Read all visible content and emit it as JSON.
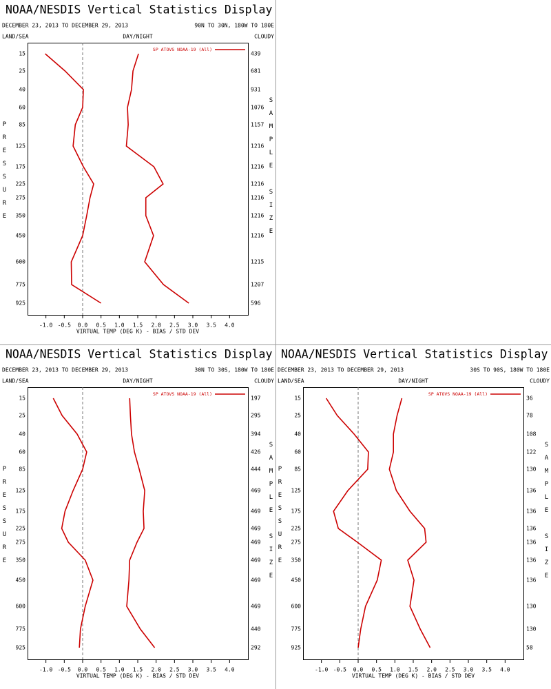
{
  "chart_data": [
    {
      "type": "line",
      "title": "NOAA/NESDIS Vertical Statistics Display",
      "subtitle": "DECEMBER 23, 2013 TO DECEMBER 29, 2013",
      "region": "90N TO 30N, 180W TO 180E",
      "left_label": "LAND/SEA",
      "center_label": "DAY/NIGHT",
      "right_label": "CLOUDY",
      "y_label": "PRESSURE",
      "y2_label": "SAMPLE SIZE",
      "x_label": "VIRTUAL TEMP (DEG K) - BIAS / STD DEV",
      "categories": [
        "15",
        "25",
        "40",
        "60",
        "85",
        "125",
        "175",
        "225",
        "275",
        "350",
        "450",
        "600",
        "775",
        "925"
      ],
      "sample_sizes": [
        439,
        681,
        931,
        1076,
        1157,
        1216,
        1216,
        1216,
        1216,
        1216,
        1216,
        1215,
        1207,
        596
      ],
      "series": [
        {
          "name": "SP ATOVS NOAA-19 (All)",
          "color": "#cc0000",
          "values": [
            -1.02,
            -0.48,
            0.02,
            0.0,
            -0.2,
            -0.26,
            0.02,
            0.3,
            0.2,
            0.11,
            0.0,
            -0.31,
            -0.3,
            0.5
          ]
        },
        {
          "color": "#cc0000",
          "values": [
            1.52,
            1.37,
            1.33,
            1.22,
            1.24,
            1.19,
            1.94,
            2.19,
            1.72,
            1.72,
            1.93,
            1.69,
            2.2,
            2.89
          ]
        }
      ],
      "xlim": [
        -1.5,
        4.5
      ],
      "xticks": [
        {
          "value": -1,
          "label": "-1.0"
        },
        {
          "value": -0.5,
          "label": "-0.5"
        },
        {
          "value": 0,
          "label": "0.0"
        },
        {
          "value": 0.5,
          "label": "0.5"
        },
        {
          "value": 1,
          "label": "1.0"
        },
        {
          "value": 1.5,
          "label": "1.5"
        },
        {
          "value": 2,
          "label": "2.0"
        },
        {
          "value": 2.5,
          "label": "2.5"
        },
        {
          "value": 3,
          "label": "3.0"
        },
        {
          "value": 3.5,
          "label": "3.5"
        },
        {
          "value": 4,
          "label": "4.0"
        }
      ]
    },
    {
      "type": "line",
      "title": "NOAA/NESDIS Vertical Statistics Display",
      "subtitle": "DECEMBER 23, 2013 TO DECEMBER 29, 2013",
      "region": "30N TO 30S, 180W TO 180E",
      "left_label": "LAND/SEA",
      "center_label": "DAY/NIGHT",
      "right_label": "CLOUDY",
      "y_label": "PRESSURE",
      "y2_label": "SAMPLE SIZE",
      "x_label": "VIRTUAL TEMP (DEG K) - BIAS / STD DEV",
      "categories": [
        "15",
        "25",
        "40",
        "60",
        "85",
        "125",
        "175",
        "225",
        "275",
        "350",
        "450",
        "600",
        "775",
        "925"
      ],
      "sample_sizes": [
        197,
        295,
        394,
        426,
        444,
        469,
        469,
        469,
        469,
        469,
        469,
        469,
        440,
        292
      ],
      "series": [
        {
          "name": "SP ATOVS NOAA-19 (All)",
          "color": "#cc0000",
          "values": [
            -0.8,
            -0.56,
            -0.15,
            0.11,
            0.0,
            -0.26,
            -0.48,
            -0.57,
            -0.39,
            0.07,
            0.28,
            0.07,
            -0.06,
            -0.09
          ]
        },
        {
          "color": "#cc0000",
          "values": [
            1.28,
            1.3,
            1.33,
            1.41,
            1.54,
            1.69,
            1.65,
            1.67,
            1.48,
            1.28,
            1.26,
            1.2,
            1.57,
            1.96
          ]
        }
      ],
      "xlim": [
        -1.5,
        4.5
      ],
      "xticks": [
        {
          "value": -1,
          "label": "-1.0"
        },
        {
          "value": -0.5,
          "label": "-0.5"
        },
        {
          "value": 0,
          "label": "0.0"
        },
        {
          "value": 0.5,
          "label": "0.5"
        },
        {
          "value": 1,
          "label": "1.0"
        },
        {
          "value": 1.5,
          "label": "1.5"
        },
        {
          "value": 2,
          "label": "2.0"
        },
        {
          "value": 2.5,
          "label": "2.5"
        },
        {
          "value": 3,
          "label": "3.0"
        },
        {
          "value": 3.5,
          "label": "3.5"
        },
        {
          "value": 4,
          "label": "4.0"
        }
      ]
    },
    {
      "type": "line",
      "title": "NOAA/NESDIS Vertical Statistics Display",
      "subtitle": "DECEMBER 23, 2013 TO DECEMBER 29, 2013",
      "region": "30S TO 90S, 180W TO 180E",
      "left_label": "LAND/SEA",
      "center_label": "DAY/NIGHT",
      "right_label": "CLOUDY",
      "y_label": "PRESSURE",
      "y2_label": "SAMPLE SIZE",
      "x_label": "VIRTUAL TEMP (DEG K) - BIAS / STD DEV",
      "categories": [
        "15",
        "25",
        "40",
        "60",
        "85",
        "125",
        "175",
        "225",
        "275",
        "350",
        "450",
        "600",
        "775",
        "925"
      ],
      "sample_sizes": [
        36,
        78,
        108,
        122,
        130,
        136,
        136,
        136,
        136,
        136,
        136,
        130,
        130,
        58
      ],
      "series": [
        {
          "name": "SP ATOVS NOAA-19 (All)",
          "color": "#cc0000",
          "values": [
            -0.87,
            -0.57,
            -0.11,
            0.28,
            0.26,
            -0.28,
            -0.67,
            -0.54,
            -0.02,
            0.63,
            0.52,
            0.2,
            0.07,
            0.0
          ]
        },
        {
          "color": "#cc0000",
          "values": [
            1.19,
            1.06,
            0.96,
            0.96,
            0.85,
            1.04,
            1.41,
            1.81,
            1.85,
            1.35,
            1.52,
            1.41,
            1.69,
            1.96
          ]
        }
      ],
      "xlim": [
        -1.5,
        4.5
      ],
      "xticks": [
        {
          "value": -1,
          "label": "-1.0"
        },
        {
          "value": -0.5,
          "label": "-0.5"
        },
        {
          "value": 0,
          "label": "0.0"
        },
        {
          "value": 0.5,
          "label": "0.5"
        },
        {
          "value": 1,
          "label": "1.0"
        },
        {
          "value": 1.5,
          "label": "1.5"
        },
        {
          "value": 2,
          "label": "2.0"
        },
        {
          "value": 2.5,
          "label": "2.5"
        },
        {
          "value": 3,
          "label": "3.0"
        },
        {
          "value": 3.5,
          "label": "3.5"
        },
        {
          "value": 4,
          "label": "4.0"
        }
      ]
    }
  ]
}
